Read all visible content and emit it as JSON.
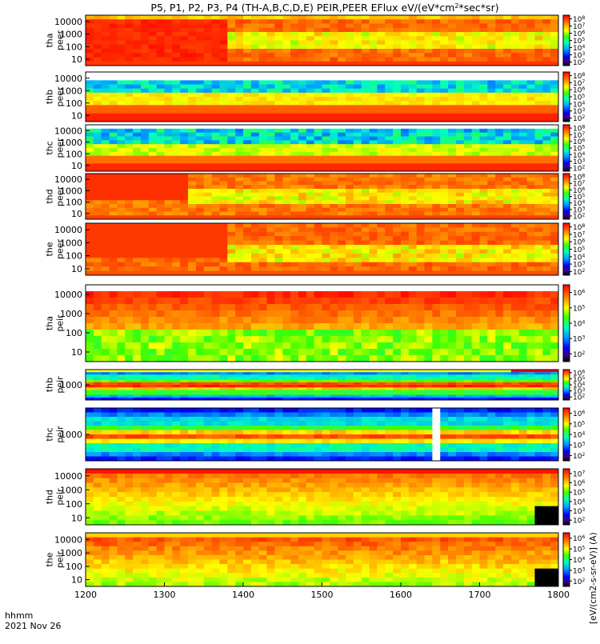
{
  "chart_data": {
    "type": "heatmap",
    "title": "P5, P1, P2, P3, P4 (TH-A,B,C,D,E) PEIR,PEER EFlux eV/(eV*cm2*sec*sr)",
    "title_superscript": "2",
    "xlabel_line1": "hhmm",
    "xlabel_line2": "2021 Nov 26",
    "x_ticks": [
      "1200",
      "1300",
      "1400",
      "1500",
      "1600",
      "1700",
      "1800"
    ],
    "xlim": [
      "1200",
      "1800"
    ],
    "colorbar_label": "[eV/(cm2-s-sr-eV)] (A)",
    "log_scale_y": true,
    "panels": [
      {
        "probe": "tha",
        "species": "peer",
        "ylabel": [
          "tha",
          "peer"
        ],
        "y_ticks": [
          "10",
          "100",
          "1000",
          "10000"
        ],
        "cbar_ticks": [
          "10",
          "10",
          "10",
          "10",
          "10",
          "10",
          "10"
        ],
        "cbar_exp": [
          "2",
          "3",
          "4",
          "5",
          "6",
          "7",
          "8"
        ],
        "pattern": "electron_a"
      },
      {
        "probe": "thb",
        "species": "peer",
        "ylabel": [
          "thb",
          "peer"
        ],
        "y_ticks": [
          "10",
          "100",
          "1000",
          "10000"
        ],
        "cbar_ticks": [
          "10",
          "10",
          "10",
          "10",
          "10",
          "10",
          "10"
        ],
        "cbar_exp": [
          "2",
          "3",
          "4",
          "5",
          "6",
          "7",
          "8"
        ],
        "pattern": "electron_b"
      },
      {
        "probe": "thc",
        "species": "peer",
        "ylabel": [
          "thc",
          "peer"
        ],
        "y_ticks": [
          "10",
          "100",
          "1000",
          "10000"
        ],
        "cbar_ticks": [
          "10",
          "10",
          "10",
          "10",
          "10",
          "10",
          "10"
        ],
        "cbar_exp": [
          "2",
          "3",
          "4",
          "5",
          "6",
          "7",
          "8"
        ],
        "pattern": "electron_c"
      },
      {
        "probe": "thd",
        "species": "peer",
        "ylabel": [
          "thd",
          "peer"
        ],
        "y_ticks": [
          "10",
          "100",
          "1000",
          "10000"
        ],
        "cbar_ticks": [
          "10",
          "10",
          "10",
          "10",
          "10",
          "10",
          "10"
        ],
        "cbar_exp": [
          "2",
          "3",
          "4",
          "5",
          "6",
          "7",
          "8"
        ],
        "pattern": "electron_d"
      },
      {
        "probe": "the",
        "species": "peer",
        "ylabel": [
          "the",
          "peer"
        ],
        "y_ticks": [
          "10",
          "100",
          "1000",
          "10000"
        ],
        "cbar_ticks": [
          "10",
          "10",
          "10",
          "10",
          "10",
          "10",
          "10"
        ],
        "cbar_exp": [
          "2",
          "3",
          "4",
          "5",
          "6",
          "7",
          "8"
        ],
        "pattern": "electron_e"
      },
      {
        "probe": "tha",
        "species": "peir",
        "ylabel": [
          "tha",
          "peir"
        ],
        "y_ticks": [
          "10",
          "100",
          "1000",
          "10000"
        ],
        "cbar_ticks": [
          "10",
          "10",
          "10",
          "10",
          "10"
        ],
        "cbar_exp": [
          "2",
          "3",
          "4",
          "5",
          "6"
        ],
        "pattern": "ion_a"
      },
      {
        "probe": "thb",
        "species": "peir",
        "ylabel": [
          "thb",
          "peir"
        ],
        "y_ticks": [
          "1000"
        ],
        "cbar_ticks": [
          "10",
          "10",
          "10",
          "10",
          "10"
        ],
        "cbar_exp": [
          "2",
          "3",
          "4",
          "5",
          "6"
        ],
        "pattern": "ion_b"
      },
      {
        "probe": "thc",
        "species": "peir",
        "ylabel": [
          "thc",
          "peir"
        ],
        "y_ticks": [
          "1000"
        ],
        "cbar_ticks": [
          "10",
          "10",
          "10",
          "10",
          "10"
        ],
        "cbar_exp": [
          "2",
          "3",
          "4",
          "5",
          "6"
        ],
        "pattern": "ion_c"
      },
      {
        "probe": "thd",
        "species": "peir",
        "ylabel": [
          "thd",
          "peir"
        ],
        "y_ticks": [
          "10",
          "100",
          "1000",
          "10000"
        ],
        "cbar_ticks": [
          "10",
          "10",
          "10",
          "10",
          "10",
          "10"
        ],
        "cbar_exp": [
          "2",
          "3",
          "4",
          "5",
          "6",
          "7"
        ],
        "pattern": "ion_d"
      },
      {
        "probe": "the",
        "species": "peir",
        "ylabel": [
          "the",
          "peir"
        ],
        "y_ticks": [
          "10",
          "100",
          "1000",
          "10000"
        ],
        "cbar_ticks": [
          "10",
          "10",
          "10",
          "10",
          "10"
        ],
        "cbar_exp": [
          "2",
          "3",
          "4",
          "5",
          "6"
        ],
        "pattern": "ion_e"
      }
    ]
  }
}
